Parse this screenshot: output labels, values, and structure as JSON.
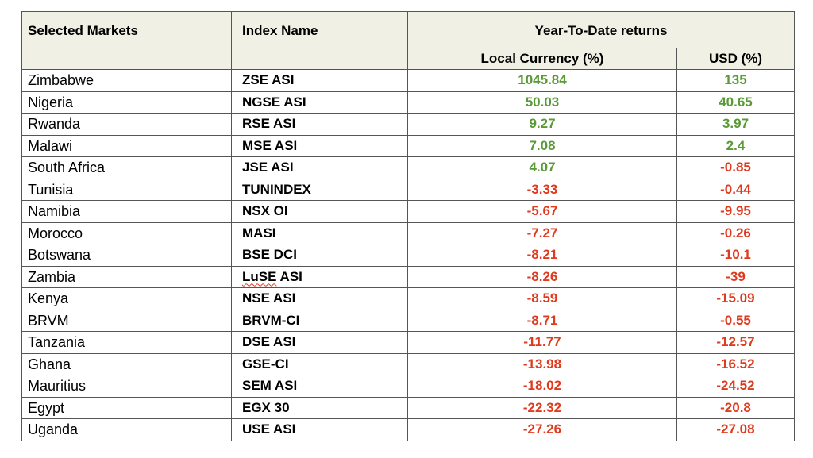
{
  "header": {
    "markets": "Selected Markets",
    "index": "Index Name",
    "ytd": "Year-To-Date returns",
    "local": "Local Currency (%)",
    "usd": "USD (%)"
  },
  "colors": {
    "positive": "#5a9a36",
    "negative": "#e03a1e"
  },
  "rows": [
    {
      "market": "Zimbabwe",
      "index": "ZSE ASI",
      "local": "1045.84",
      "usd": "135"
    },
    {
      "market": "Nigeria",
      "index": "NGSE ASI",
      "local": "50.03",
      "usd": "40.65"
    },
    {
      "market": "Rwanda",
      "index": "RSE ASI",
      "local": "9.27",
      "usd": "3.97"
    },
    {
      "market": "Malawi",
      "index": "MSE ASI",
      "local": "7.08",
      "usd": "2.4"
    },
    {
      "market": "South Africa",
      "index": "JSE ASI",
      "local": "4.07",
      "usd": "-0.85"
    },
    {
      "market": "Tunisia",
      "index": "TUNINDEX",
      "local": "-3.33",
      "usd": "-0.44"
    },
    {
      "market": "Namibia",
      "index": "NSX OI",
      "local": "-5.67",
      "usd": "-9.95"
    },
    {
      "market": "Morocco",
      "index": "MASI",
      "local": "-7.27",
      "usd": "-0.26"
    },
    {
      "market": "Botswana",
      "index": "BSE DCI",
      "local": "-8.21",
      "usd": "-10.1"
    },
    {
      "market": "Zambia",
      "index": "LuSE ASI",
      "local": "-8.26",
      "usd": "-39"
    },
    {
      "market": "Kenya",
      "index": "NSE ASI",
      "local": "-8.59",
      "usd": "-15.09"
    },
    {
      "market": "BRVM",
      "index": "BRVM-CI",
      "local": "-8.71",
      "usd": "-0.55"
    },
    {
      "market": "Tanzania",
      "index": "DSE ASI",
      "local": "-11.77",
      "usd": "-12.57"
    },
    {
      "market": "Ghana",
      "index": "GSE-CI",
      "local": "-13.98",
      "usd": "-16.52"
    },
    {
      "market": "Mauritius",
      "index": "SEM ASI",
      "local": "-18.02",
      "usd": "-24.52"
    },
    {
      "market": "Egypt",
      "index": "EGX 30",
      "local": "-22.32",
      "usd": "-20.8"
    },
    {
      "market": "Uganda",
      "index": "USE ASI",
      "local": "-27.26",
      "usd": "-27.08"
    }
  ]
}
